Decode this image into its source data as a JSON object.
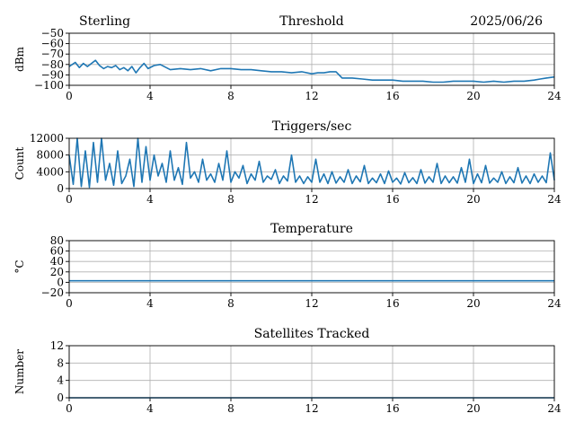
{
  "header": {
    "station": "Sterling",
    "date": "2025/06/26"
  },
  "chart_data": [
    {
      "type": "line",
      "title": "Threshold",
      "ylabel": "dBm",
      "xlim": [
        0,
        24
      ],
      "ylim": [
        -100,
        -50
      ],
      "xticks": [
        "0",
        "4",
        "8",
        "12",
        "16",
        "20",
        "24"
      ],
      "yticks": [
        "−50",
        "−60",
        "−70",
        "−80",
        "−90",
        "−100"
      ],
      "ytick_values": [
        -50,
        -60,
        -70,
        -80,
        -90,
        -100
      ],
      "grid": true,
      "series": [
        {
          "color": "#1f77b4",
          "x": [
            0,
            0.3,
            0.5,
            0.7,
            0.9,
            1.1,
            1.3,
            1.5,
            1.7,
            1.9,
            2.1,
            2.3,
            2.5,
            2.7,
            2.9,
            3.1,
            3.3,
            3.5,
            3.7,
            3.9,
            4.2,
            4.5,
            5,
            5.5,
            6,
            6.5,
            7,
            7.5,
            8,
            8.5,
            9,
            9.5,
            10,
            10.5,
            11,
            11.5,
            12,
            12.3,
            12.6,
            12.9,
            13.2,
            13.5,
            14,
            14.5,
            15,
            15.5,
            16,
            16.5,
            17,
            17.5,
            18,
            18.5,
            19,
            19.5,
            20,
            20.5,
            21,
            21.5,
            22,
            22.5,
            23,
            23.3,
            23.6,
            24
          ],
          "y": [
            -82,
            -78,
            -83,
            -79,
            -82,
            -79,
            -76,
            -81,
            -84,
            -82,
            -83,
            -81,
            -85,
            -83,
            -86,
            -82,
            -88,
            -83,
            -79,
            -84,
            -81,
            -80,
            -85,
            -84,
            -85,
            -84,
            -86,
            -84,
            -84,
            -85,
            -85,
            -86,
            -87,
            -87,
            -88,
            -87,
            -89,
            -88,
            -88,
            -87,
            -87,
            -93,
            -93,
            -94,
            -95,
            -95,
            -95,
            -96,
            -96,
            -96,
            -97,
            -97,
            -96,
            -96,
            -96,
            -97,
            -96,
            -97,
            -96,
            -96,
            -95,
            -94,
            -93,
            -92
          ]
        }
      ]
    },
    {
      "type": "line",
      "title": "Triggers/sec",
      "ylabel": "Count",
      "xlim": [
        0,
        24
      ],
      "ylim": [
        0,
        12000
      ],
      "xticks": [
        "0",
        "4",
        "8",
        "12",
        "16",
        "20",
        "24"
      ],
      "yticks": [
        "0",
        "4000",
        "8000",
        "12000"
      ],
      "ytick_values": [
        0,
        4000,
        8000,
        12000
      ],
      "grid": true,
      "series": [
        {
          "color": "#1f77b4",
          "x": [
            0,
            0.2,
            0.4,
            0.6,
            0.8,
            1.0,
            1.2,
            1.4,
            1.6,
            1.8,
            2.0,
            2.2,
            2.4,
            2.6,
            2.8,
            3.0,
            3.2,
            3.4,
            3.6,
            3.8,
            4.0,
            4.2,
            4.4,
            4.6,
            4.8,
            5.0,
            5.2,
            5.4,
            5.6,
            5.8,
            6.0,
            6.2,
            6.4,
            6.6,
            6.8,
            7.0,
            7.2,
            7.4,
            7.6,
            7.8,
            8.0,
            8.2,
            8.4,
            8.6,
            8.8,
            9.0,
            9.2,
            9.4,
            9.6,
            9.8,
            10.0,
            10.2,
            10.4,
            10.6,
            10.8,
            11.0,
            11.2,
            11.4,
            11.6,
            11.8,
            12.0,
            12.2,
            12.4,
            12.6,
            12.8,
            13.0,
            13.2,
            13.4,
            13.6,
            13.8,
            14.0,
            14.2,
            14.4,
            14.6,
            14.8,
            15.0,
            15.2,
            15.4,
            15.6,
            15.8,
            16.0,
            16.2,
            16.4,
            16.6,
            16.8,
            17.0,
            17.2,
            17.4,
            17.6,
            17.8,
            18.0,
            18.2,
            18.4,
            18.6,
            18.8,
            19.0,
            19.2,
            19.4,
            19.6,
            19.8,
            20.0,
            20.2,
            20.4,
            20.6,
            20.8,
            21.0,
            21.2,
            21.4,
            21.6,
            21.8,
            22.0,
            22.2,
            22.4,
            22.6,
            22.8,
            23.0,
            23.2,
            23.4,
            23.6,
            23.8,
            24.0
          ],
          "y": [
            8000,
            1000,
            12000,
            500,
            9000,
            300,
            11000,
            1500,
            12000,
            2000,
            6000,
            800,
            9000,
            1200,
            3000,
            7000,
            500,
            12000,
            1500,
            10000,
            2000,
            8000,
            3000,
            6000,
            1500,
            9000,
            2000,
            5000,
            1000,
            11000,
            2500,
            4000,
            1500,
            7000,
            2000,
            3500,
            1500,
            6000,
            2000,
            9000,
            1500,
            4000,
            2500,
            5500,
            1200,
            3500,
            2000,
            6500,
            1500,
            3000,
            2200,
            4500,
            1200,
            3000,
            1800,
            8000,
            1500,
            3000,
            1200,
            2800,
            1500,
            7000,
            1500,
            3500,
            1200,
            4000,
            1300,
            2800,
            1500,
            4500,
            1200,
            3000,
            1600,
            5500,
            1200,
            2500,
            1400,
            3500,
            1200,
            4200,
            1500,
            2500,
            1100,
            3800,
            1400,
            2600,
            1200,
            4500,
            1300,
            2800,
            1500,
            6000,
            1200,
            3000,
            1400,
            2800,
            1300,
            5000,
            1500,
            7000,
            1200,
            3500,
            1400,
            5500,
            1300,
            2500,
            1500,
            4000,
            1200,
            2800,
            1400,
            5000,
            1300,
            3000,
            1200,
            3500,
            1500,
            3000,
            1400,
            8500,
            2000
          ]
        }
      ]
    },
    {
      "type": "line",
      "title": "Temperature",
      "ylabel": "°C",
      "xlim": [
        0,
        24
      ],
      "ylim": [
        -20,
        80
      ],
      "xticks": [
        "0",
        "4",
        "8",
        "12",
        "16",
        "20",
        "24"
      ],
      "yticks": [
        "80",
        "60",
        "40",
        "20",
        "0",
        "−20"
      ],
      "ytick_values": [
        80,
        60,
        40,
        20,
        0,
        -20
      ],
      "grid": true,
      "series": [
        {
          "color": "#1f77b4",
          "x": [
            0,
            24
          ],
          "y": [
            3,
            3
          ]
        }
      ]
    },
    {
      "type": "line",
      "title": "Satellites Tracked",
      "ylabel": "Number",
      "xlim": [
        0,
        24
      ],
      "ylim": [
        0,
        12
      ],
      "xticks": [
        "0",
        "4",
        "8",
        "12",
        "16",
        "20",
        "24"
      ],
      "yticks": [
        "12",
        "8",
        "4",
        "0"
      ],
      "ytick_values": [
        12,
        8,
        4,
        0
      ],
      "grid": true,
      "series": [
        {
          "color": "#1f77b4",
          "x": [
            0,
            24
          ],
          "y": [
            0,
            0
          ]
        }
      ]
    }
  ]
}
